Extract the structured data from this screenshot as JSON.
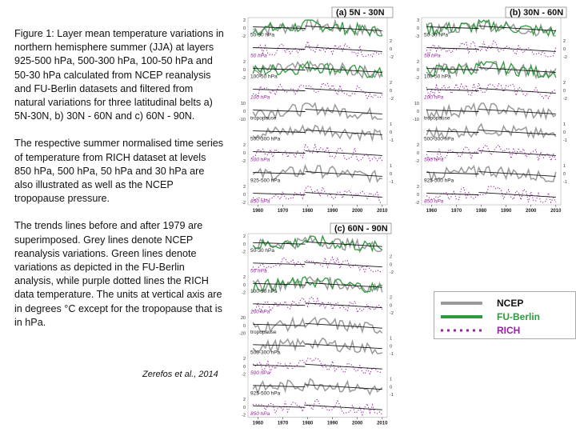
{
  "caption": {
    "paragraphs": [
      "Figure 1: Layer mean temperature variations in northern hemisphere summer (JJA) at layers 925-500 hPa, 500-300 hPa, 100-50 hPa and 50-30 hPa calculated from NCEP reanalysis and FU-Berlin datasets and filtered from natural variations for three latitudinal belts a) 5N-30N, b) 30N - 60N and c) 60N - 90N.",
      "The respective summer normalised time series of temperature from RICH dataset at levels 850 hPa, 500 hPa, 50 hPa and 30 hPa are also illustrated as well as the NCEP tropopause pressure.",
      "The trends lines before and after 1979 are superimposed. Grey lines denote NCEP reanalysis variations. Green lines denote variations as depicted in the FU-Berlin analysis, while purple dotted lines the RICH data temperature. The units at vertical axis are in degrees °C except for the tropopause that is in hPa."
    ],
    "citation": "Zerefos et al., 2014"
  },
  "colors": {
    "ncep": "#9a9a9a",
    "fu_berlin": "#2e9a3e",
    "rich": "#9b1fa3",
    "trend": "#111111"
  },
  "legend": {
    "ncep": "NCEP",
    "fu_berlin": "FU-Berlin",
    "rich": "RICH"
  },
  "chart_data": [
    {
      "type": "line",
      "title": "(a) 5N - 30N",
      "x_ticks": [
        "1960",
        "1970",
        "1980",
        "1990",
        "2000",
        "2010"
      ],
      "xlim": [
        1956,
        2012
      ],
      "rows": [
        {
          "label": "50-30 hPa",
          "ticks": [
            "2",
            "0",
            "-2"
          ],
          "series": [
            "ncep",
            "fu_berlin"
          ]
        },
        {
          "label": "50 hPa",
          "ticks": [
            "2",
            "0",
            "-2"
          ],
          "series": [
            "rich"
          ]
        },
        {
          "label": "100-50 hPa",
          "ticks": [
            "2",
            "0",
            "-2"
          ],
          "series": [
            "ncep",
            "fu_berlin"
          ]
        },
        {
          "label": "100 hPa",
          "ticks": [
            "2",
            "0",
            "-2"
          ],
          "series": [
            "rich"
          ]
        },
        {
          "label": "tropopause",
          "ticks": [
            "10",
            "0",
            "-10"
          ],
          "series": [
            "ncep"
          ]
        },
        {
          "label": "500-300 hPa",
          "ticks": [
            "1",
            "0",
            "-1"
          ],
          "series": [
            "ncep"
          ]
        },
        {
          "label": "500 hPa",
          "ticks": [
            "2",
            "0",
            "-2"
          ],
          "series": [
            "rich"
          ]
        },
        {
          "label": "925-500 hPa",
          "ticks": [
            "1",
            "0",
            "-1"
          ],
          "series": [
            "ncep"
          ]
        },
        {
          "label": "850 hPa",
          "ticks": [
            "2",
            "0",
            "-2"
          ],
          "series": [
            "rich"
          ]
        }
      ]
    },
    {
      "type": "line",
      "title": "(b) 30N - 60N",
      "x_ticks": [
        "1960",
        "1970",
        "1980",
        "1990",
        "2000",
        "2010"
      ],
      "xlim": [
        1956,
        2012
      ],
      "rows": [
        {
          "label": "50-30 hPa",
          "ticks": [
            "3",
            "0",
            "-3"
          ],
          "series": [
            "ncep",
            "fu_berlin"
          ]
        },
        {
          "label": "50 hPa",
          "ticks": [
            "2",
            "0",
            "-2"
          ],
          "series": [
            "rich"
          ]
        },
        {
          "label": "100-50 hPa",
          "ticks": [
            "2",
            "0",
            "-2"
          ],
          "series": [
            "ncep",
            "fu_berlin"
          ]
        },
        {
          "label": "100 hPa",
          "ticks": [
            "2",
            "0",
            "-2"
          ],
          "series": [
            "rich"
          ]
        },
        {
          "label": "tropopause",
          "ticks": [
            "10",
            "0",
            "-10"
          ],
          "series": [
            "ncep"
          ]
        },
        {
          "label": "500-300 hPa",
          "ticks": [
            "1",
            "0",
            "-1"
          ],
          "series": [
            "ncep"
          ]
        },
        {
          "label": "500 hPa",
          "ticks": [
            "2",
            "0",
            "-2"
          ],
          "series": [
            "rich"
          ]
        },
        {
          "label": "925-500 hPa",
          "ticks": [
            "1",
            "0",
            "-1"
          ],
          "series": [
            "ncep"
          ]
        },
        {
          "label": "850 hPa",
          "ticks": [
            "2",
            "0",
            "-2"
          ],
          "series": [
            "rich"
          ]
        }
      ]
    },
    {
      "type": "line",
      "title": "(c) 60N - 90N",
      "x_ticks": [
        "1960",
        "1970",
        "1980",
        "1990",
        "2000",
        "2010"
      ],
      "xlim": [
        1956,
        2012
      ],
      "rows": [
        {
          "label": "50-30 hPa",
          "ticks": [
            "2",
            "0",
            "-2"
          ],
          "series": [
            "ncep",
            "fu_berlin"
          ]
        },
        {
          "label": "50 hPa",
          "ticks": [
            "2",
            "0",
            "-2"
          ],
          "series": [
            "rich"
          ]
        },
        {
          "label": "100-50 hPa",
          "ticks": [
            "2",
            "0",
            "-2"
          ],
          "series": [
            "ncep",
            "fu_berlin"
          ]
        },
        {
          "label": "100 hPa",
          "ticks": [
            "2",
            "0",
            "-2"
          ],
          "series": [
            "rich"
          ]
        },
        {
          "label": "tropopause",
          "ticks": [
            "20",
            "0",
            "-20"
          ],
          "series": [
            "ncep"
          ]
        },
        {
          "label": "500-300 hPa",
          "ticks": [
            "1",
            "0",
            "-1"
          ],
          "series": [
            "ncep"
          ]
        },
        {
          "label": "500 hPa",
          "ticks": [
            "2",
            "0",
            "-2"
          ],
          "series": [
            "rich"
          ]
        },
        {
          "label": "925-500 hPa",
          "ticks": [
            "1",
            "0",
            "-1"
          ],
          "series": [
            "ncep"
          ]
        },
        {
          "label": "850 hPa",
          "ticks": [
            "2",
            "0",
            "-2"
          ],
          "series": [
            "rich"
          ]
        }
      ]
    }
  ]
}
